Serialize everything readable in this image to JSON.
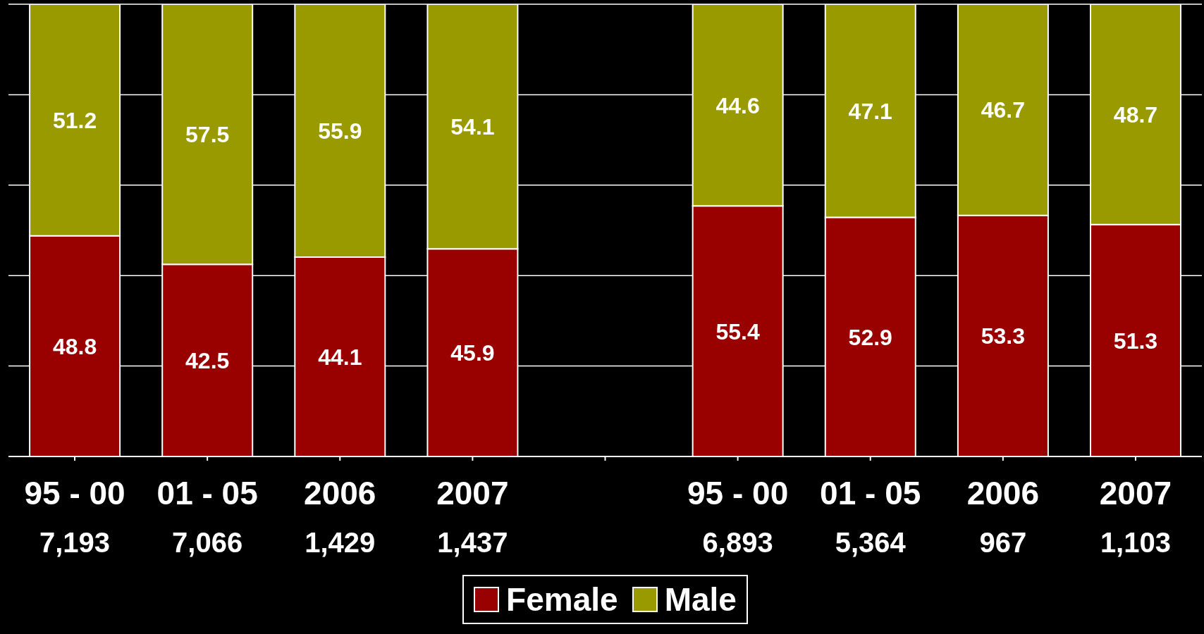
{
  "chart_data": {
    "type": "bar",
    "stacked": true,
    "categories": [
      "95 - 00\n7,193",
      "01 - 05\n7,066",
      "2006\n1,429",
      "2007\n1,437",
      null,
      "95 - 00\n6,893",
      "01 - 05\n5,364",
      "2006\n967",
      "2007\n1,103"
    ],
    "series": [
      {
        "name": "Female",
        "color": "#990000",
        "values": [
          48.8,
          42.5,
          44.1,
          45.9,
          null,
          55.4,
          52.9,
          53.3,
          51.3
        ]
      },
      {
        "name": "Male",
        "color": "#999900",
        "values": [
          51.2,
          57.5,
          55.9,
          54.1,
          null,
          44.6,
          47.1,
          46.7,
          48.7
        ]
      }
    ],
    "ylim": [
      0,
      100
    ],
    "yticks": [
      {
        "value": 0,
        "label": null
      },
      {
        "value": 20,
        "label": null
      },
      {
        "value": 40,
        "label": null
      },
      {
        "value": 60,
        "label": null
      },
      {
        "value": 80,
        "label": null
      },
      {
        "value": 100,
        "label": null
      }
    ],
    "tick_labels": "x",
    "grid": "y",
    "legend": "bottom",
    "data_labels": true
  }
}
